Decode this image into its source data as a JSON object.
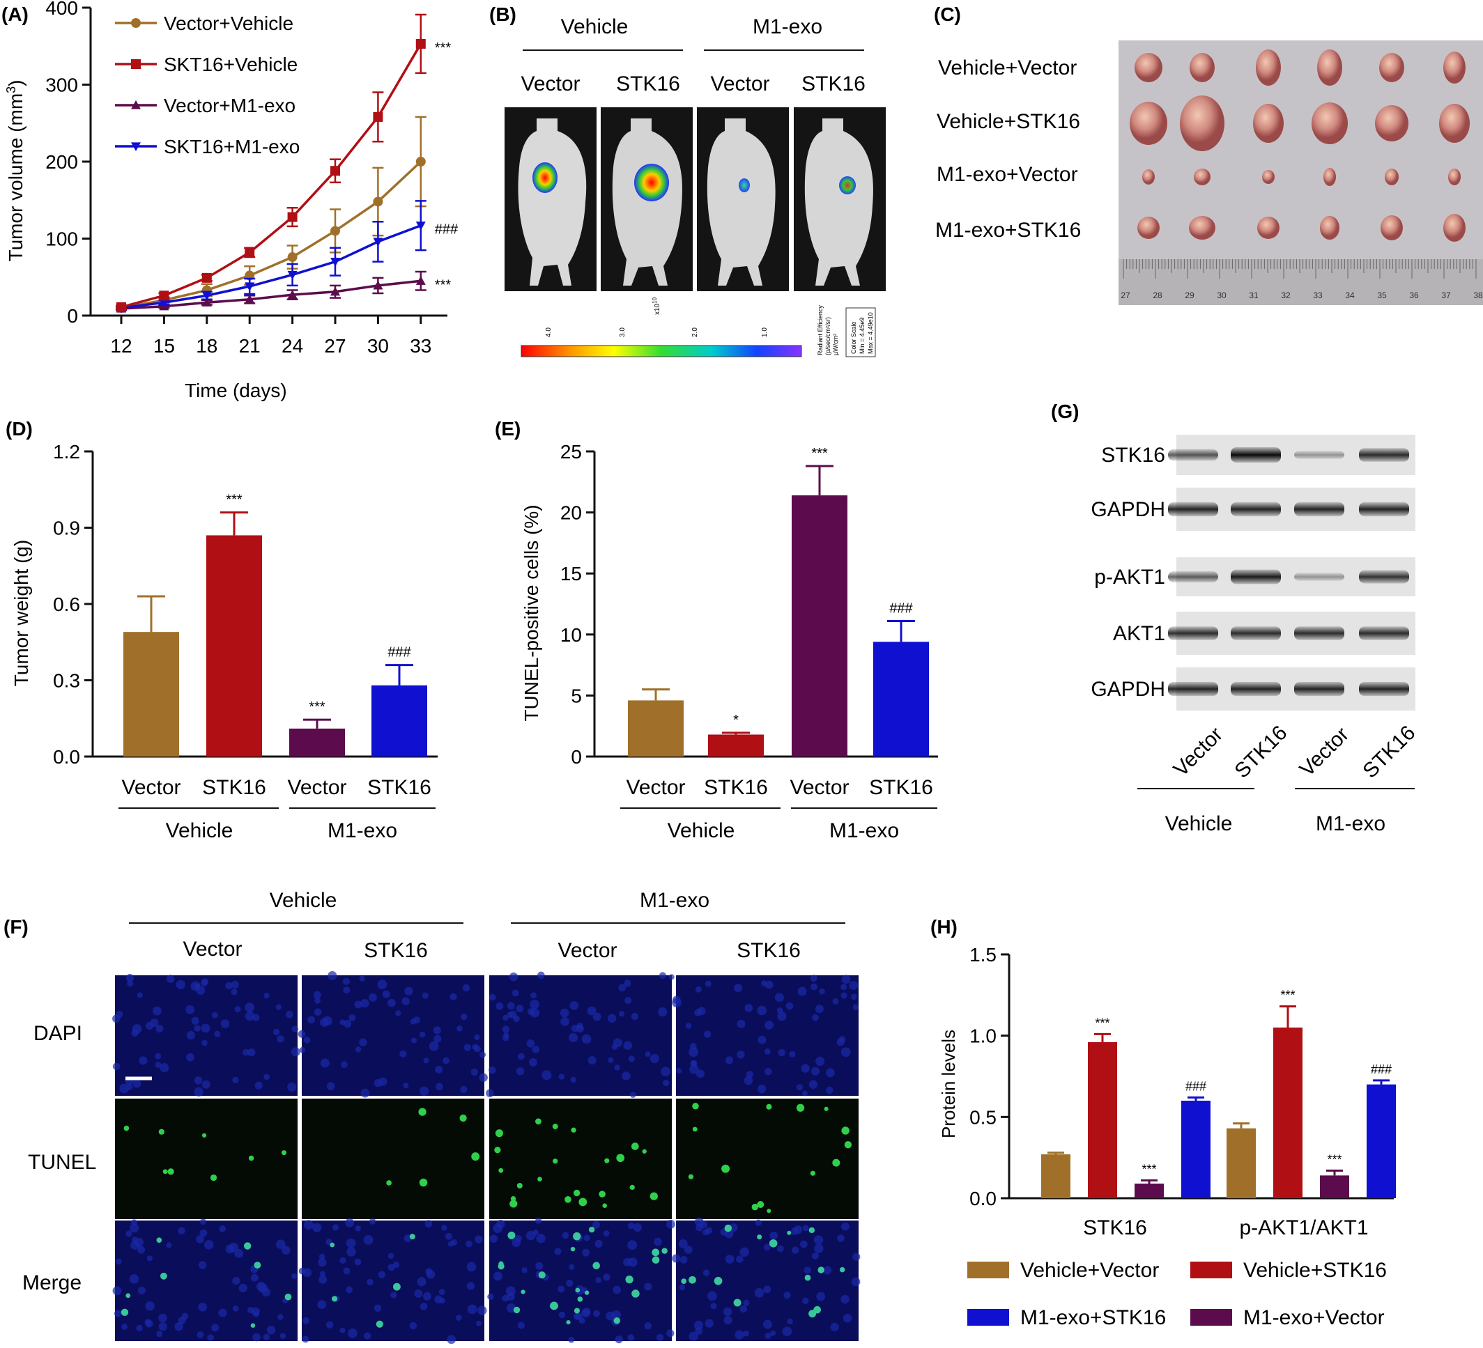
{
  "colors": {
    "brown": "#A0702A",
    "red": "#B00F14",
    "purple": "#5C0C4C",
    "blue": "#1010D0",
    "axis": "#111111"
  },
  "panels": {
    "A": {
      "letter": "(A)"
    },
    "B": {
      "letter": "(B)",
      "group_labels": [
        "Vehicle",
        "M1-exo"
      ],
      "lane_labels": [
        "Vector",
        "STK16",
        "Vector",
        "STK16"
      ],
      "scale_exponent": "x10",
      "scale_exp_sup": "10",
      "scale_ticks": [
        "4.0",
        "3.0",
        "2.0",
        "1.0"
      ],
      "scale_unit_lines": [
        "Radiant Efficiency",
        "(p/sec/cm²/sr)",
        "µW/cm²"
      ],
      "color_scale_lines": [
        "Color Scale",
        "Min = 4.45e9",
        "Max = 4.49e10"
      ]
    },
    "C": {
      "letter": "(C)",
      "row_labels": [
        "Vehicle+Vector",
        "Vehicle+STK16",
        "M1-exo+Vector",
        "M1-exo+STK16"
      ],
      "ruler_ticks": [
        "27",
        "28",
        "29",
        "30",
        "31",
        "32",
        "33",
        "34",
        "35",
        "36",
        "37",
        "38"
      ]
    },
    "D": {
      "letter": "(D)",
      "group_labels": [
        "Vehicle",
        "M1-exo"
      ]
    },
    "E": {
      "letter": "(E)",
      "group_labels": [
        "Vehicle",
        "M1-exo"
      ]
    },
    "F": {
      "letter": "(F)",
      "group_labels": [
        "Vehicle",
        "M1-exo"
      ],
      "col_labels": [
        "Vector",
        "STK16",
        "Vector",
        "STK16"
      ],
      "row_labels": [
        "DAPI",
        "TUNEL",
        "Merge"
      ]
    },
    "G": {
      "letter": "(G)",
      "blot_labels": [
        "STK16",
        "GAPDH",
        "p-AKT1",
        "AKT1",
        "GAPDH"
      ],
      "lane_labels": [
        "Vector",
        "STK16",
        "Vector",
        "STK16"
      ],
      "group_labels": [
        "Vehicle",
        "M1-exo"
      ],
      "band_intensity": [
        [
          0.55,
          1.0,
          0.15,
          0.8
        ],
        [
          0.85,
          0.85,
          0.85,
          0.85
        ],
        [
          0.5,
          0.9,
          0.15,
          0.75
        ],
        [
          0.8,
          0.8,
          0.8,
          0.8
        ],
        [
          0.85,
          0.85,
          0.85,
          0.85
        ]
      ]
    },
    "H": {
      "letter": "(H)"
    }
  },
  "chart_data": [
    {
      "panel": "A",
      "type": "line",
      "x": [
        12,
        15,
        18,
        21,
        24,
        27,
        30,
        33
      ],
      "xlabel": "Time (days)",
      "ylabel": "Tumor volume (mm",
      "ylabel_sup": "3",
      "ylabel_end": ")",
      "ylim": [
        0,
        400
      ],
      "yticks": [
        0,
        100,
        200,
        300,
        400
      ],
      "series": [
        {
          "name": "Vector+Vehicle",
          "color": "#A0702A",
          "marker": "circle",
          "values": [
            10,
            20,
            33,
            52,
            76,
            110,
            148,
            200
          ],
          "errors": [
            2,
            4,
            8,
            12,
            15,
            28,
            44,
            58
          ],
          "annotation": ""
        },
        {
          "name": "SKT16+Vehicle",
          "color": "#B00F14",
          "marker": "square",
          "values": [
            11,
            26,
            49,
            82,
            128,
            188,
            258,
            353
          ],
          "errors": [
            2,
            3,
            4,
            6,
            12,
            15,
            32,
            38
          ],
          "annotation": "***"
        },
        {
          "name": "Vector+M1-exo",
          "color": "#5C0C4C",
          "marker": "triangle-up",
          "values": [
            9,
            12,
            17,
            21,
            27,
            31,
            39,
            45
          ],
          "errors": [
            2,
            2,
            3,
            5,
            6,
            8,
            10,
            12
          ],
          "annotation": "***"
        },
        {
          "name": "SKT16+M1-exo",
          "color": "#1010D0",
          "marker": "triangle-down",
          "values": [
            10,
            17,
            26,
            38,
            53,
            70,
            96,
            117
          ],
          "errors": [
            2,
            3,
            5,
            10,
            14,
            18,
            26,
            32
          ],
          "annotation": "###"
        }
      ]
    },
    {
      "panel": "D",
      "type": "bar",
      "categories": [
        "Vector",
        "STK16",
        "Vector",
        "STK16"
      ],
      "values": [
        0.49,
        0.87,
        0.11,
        0.28
      ],
      "errors": [
        0.14,
        0.09,
        0.035,
        0.08
      ],
      "annotations": [
        "",
        "***",
        "***",
        "###"
      ],
      "colors": [
        "#A0702A",
        "#B00F14",
        "#5C0C4C",
        "#1010D0"
      ],
      "ylabel": "Tumor weight (g)",
      "ylim": [
        0,
        1.2
      ],
      "yticks": [
        "0.0",
        "0.3",
        "0.6",
        "0.9",
        "1.2"
      ]
    },
    {
      "panel": "E",
      "type": "bar",
      "categories": [
        "Vector",
        "STK16",
        "Vector",
        "STK16"
      ],
      "values": [
        4.6,
        1.8,
        21.4,
        9.4
      ],
      "errors": [
        0.9,
        0.15,
        2.4,
        1.7
      ],
      "annotations": [
        "",
        "*",
        "***",
        "###"
      ],
      "colors": [
        "#A0702A",
        "#B00F14",
        "#5C0C4C",
        "#1010D0"
      ],
      "ylabel": "TUNEL-positive cells (%)",
      "ylim": [
        0,
        25
      ],
      "yticks": [
        "0",
        "5",
        "10",
        "15",
        "20",
        "25"
      ]
    },
    {
      "panel": "H",
      "type": "bar",
      "categories": [
        "STK16",
        "p-AKT1/AKT1"
      ],
      "ylabel": "Protein levels",
      "ylim": [
        0,
        1.5
      ],
      "yticks": [
        "0.0",
        "0.5",
        "1.0",
        "1.5"
      ],
      "series": [
        {
          "name": "Vehicle+Vector",
          "color": "#A0702A",
          "values": [
            0.27,
            0.43
          ],
          "errors": [
            0.01,
            0.03
          ],
          "annotations": [
            "",
            ""
          ]
        },
        {
          "name": "Vehicle+STK16",
          "color": "#B00F14",
          "values": [
            0.96,
            1.05
          ],
          "errors": [
            0.05,
            0.13
          ],
          "annotations": [
            "***",
            "***"
          ]
        },
        {
          "name": "M1-exo+Vector",
          "color": "#5C0C4C",
          "values": [
            0.09,
            0.14
          ],
          "errors": [
            0.02,
            0.03
          ],
          "annotations": [
            "***",
            "***"
          ]
        },
        {
          "name": "M1-exo+STK16",
          "color": "#1010D0",
          "values": [
            0.6,
            0.7
          ],
          "errors": [
            0.02,
            0.025
          ],
          "annotations": [
            "###",
            "###"
          ]
        }
      ],
      "legend_order": [
        "Vehicle+Vector",
        "Vehicle+STK16",
        "M1-exo+STK16",
        "M1-exo+Vector"
      ]
    }
  ]
}
